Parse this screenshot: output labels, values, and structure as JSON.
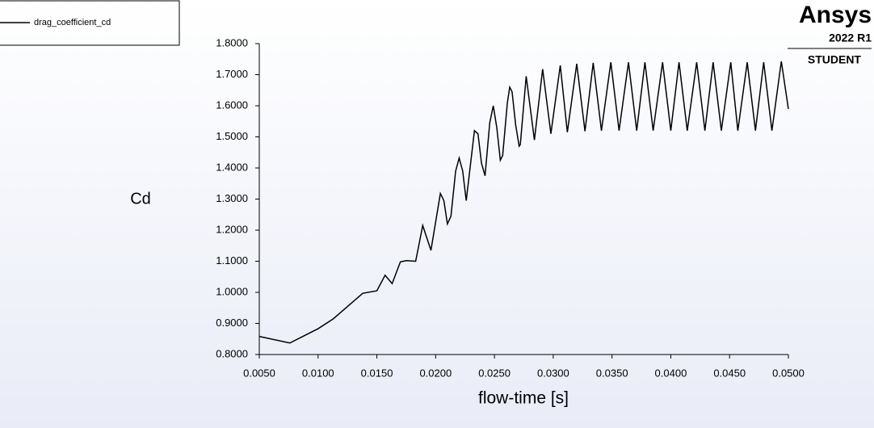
{
  "chart_data": {
    "type": "line",
    "legend_position": "top-left",
    "x_label": "flow-time [s]",
    "y_label": "Cd",
    "logo": {
      "brand": "Ansys",
      "version": "2022 R1",
      "edition": "STUDENT"
    },
    "xlim": [
      0.005,
      0.05
    ],
    "ylim": [
      0.8,
      1.8
    ],
    "xticks": [
      {
        "value": 0.005,
        "label": "0.0050"
      },
      {
        "value": 0.01,
        "label": "0.0100"
      },
      {
        "value": 0.015,
        "label": "0.0150"
      },
      {
        "value": 0.02,
        "label": "0.0200"
      },
      {
        "value": 0.025,
        "label": "0.0250"
      },
      {
        "value": 0.03,
        "label": "0.0300"
      },
      {
        "value": 0.035,
        "label": "0.0350"
      },
      {
        "value": 0.04,
        "label": "0.0400"
      },
      {
        "value": 0.045,
        "label": "0.0450"
      },
      {
        "value": 0.05,
        "label": "0.0500"
      }
    ],
    "yticks": [
      {
        "value": 0.8,
        "label": "0.8000"
      },
      {
        "value": 0.9,
        "label": "0.9000"
      },
      {
        "value": 1.0,
        "label": "1.0000"
      },
      {
        "value": 1.1,
        "label": "1.1000"
      },
      {
        "value": 1.2,
        "label": "1.2000"
      },
      {
        "value": 1.3,
        "label": "1.3000"
      },
      {
        "value": 1.4,
        "label": "1.4000"
      },
      {
        "value": 1.5,
        "label": "1.5000"
      },
      {
        "value": 1.6,
        "label": "1.6000"
      },
      {
        "value": 1.7,
        "label": "1.7000"
      },
      {
        "value": 1.8,
        "label": "1.8000"
      }
    ],
    "x": [
      0.005,
      0.0076,
      0.01,
      0.0113,
      0.0138,
      0.015,
      0.0157,
      0.0163,
      0.017,
      0.0175,
      0.0183,
      0.0189,
      0.0196,
      0.0204,
      0.0207,
      0.021,
      0.0213,
      0.0217,
      0.022,
      0.0223,
      0.0226,
      0.0233,
      0.0236,
      0.0239,
      0.0242,
      0.0246,
      0.0249,
      0.0252,
      0.0255,
      0.0257,
      0.0261,
      0.0263,
      0.0265,
      0.0268,
      0.0271,
      0.0272,
      0.0277,
      0.0284,
      0.0291,
      0.0298,
      0.0306,
      0.0312,
      0.032,
      0.0327,
      0.0334,
      0.0341,
      0.0349,
      0.0356,
      0.0364,
      0.0371,
      0.0378,
      0.0385,
      0.0393,
      0.04,
      0.0407,
      0.0414,
      0.0422,
      0.0429,
      0.0436,
      0.0443,
      0.0451,
      0.0457,
      0.0465,
      0.0472,
      0.0479,
      0.0486,
      0.0494,
      0.05
    ],
    "series": [
      {
        "name": "drag_coefficient_cd",
        "color": "#000000",
        "values": [
          0.858,
          0.837,
          0.883,
          0.915,
          0.997,
          1.005,
          1.055,
          1.028,
          1.098,
          1.102,
          1.1,
          1.215,
          1.135,
          1.318,
          1.295,
          1.22,
          1.245,
          1.39,
          1.432,
          1.39,
          1.295,
          1.52,
          1.51,
          1.415,
          1.375,
          1.545,
          1.6,
          1.53,
          1.425,
          1.44,
          1.61,
          1.66,
          1.645,
          1.54,
          1.47,
          1.475,
          1.695,
          1.49,
          1.718,
          1.51,
          1.73,
          1.515,
          1.735,
          1.518,
          1.738,
          1.52,
          1.74,
          1.52,
          1.74,
          1.52,
          1.74,
          1.52,
          1.74,
          1.52,
          1.74,
          1.52,
          1.74,
          1.52,
          1.74,
          1.52,
          1.74,
          1.52,
          1.74,
          1.52,
          1.74,
          1.52,
          1.743,
          1.59
        ]
      }
    ]
  }
}
